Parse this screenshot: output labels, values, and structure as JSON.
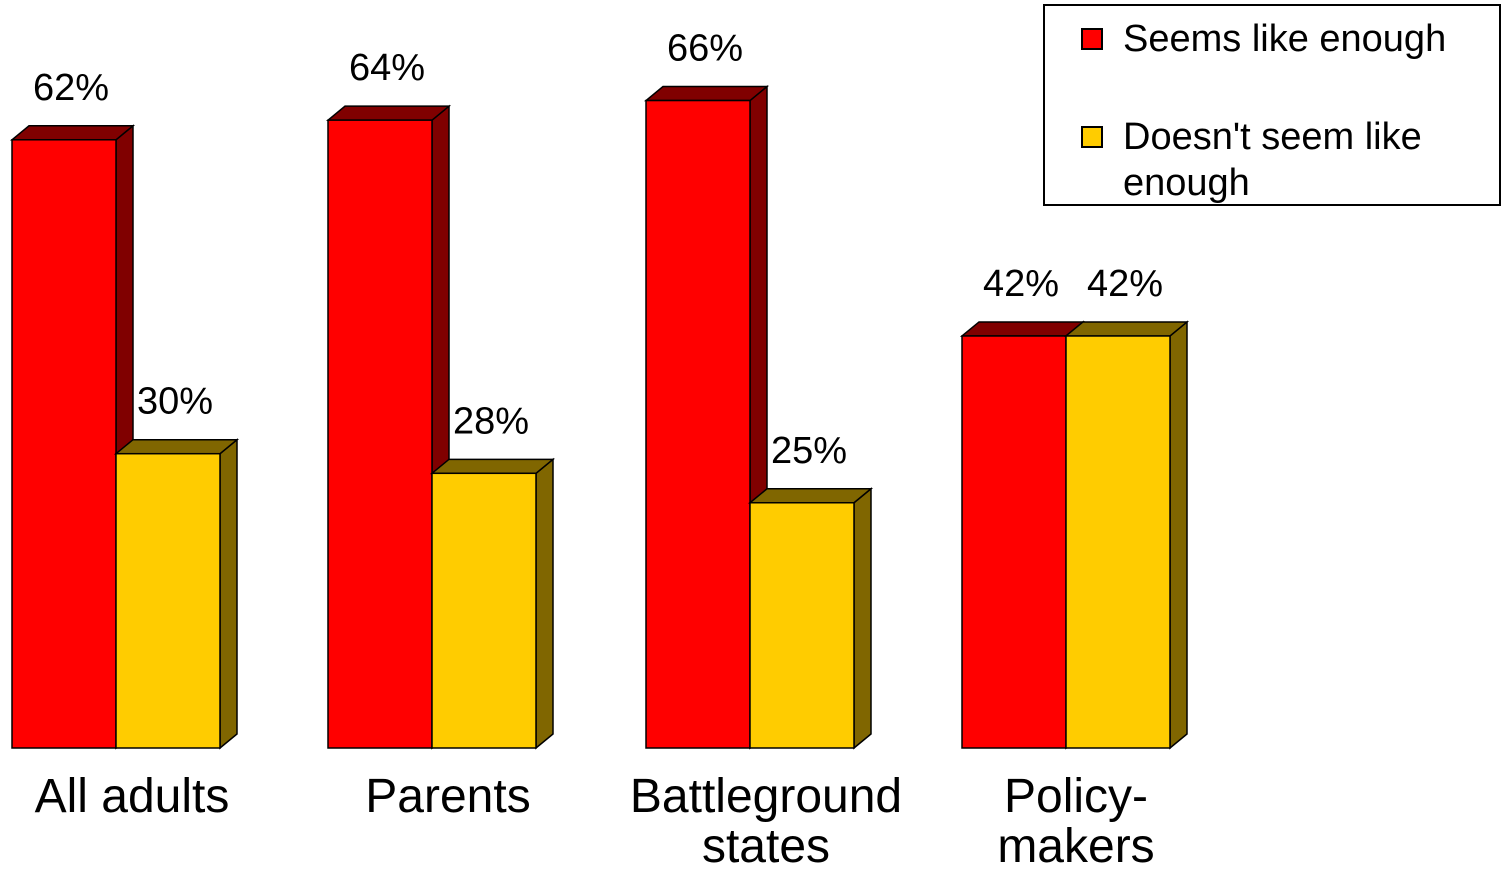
{
  "chart_data": {
    "type": "bar",
    "categories": [
      "All adults",
      "Parents",
      "Battleground states",
      "Policy-makers"
    ],
    "category_lines": [
      [
        "All adults"
      ],
      [
        "Parents"
      ],
      [
        "Battleground",
        "states"
      ],
      [
        "Policy-",
        "makers"
      ]
    ],
    "series": [
      {
        "name": "Seems like enough",
        "values": [
          62,
          64,
          66,
          42
        ],
        "labels": [
          "62%",
          "64%",
          "66%",
          "42%"
        ],
        "color": "#ff0000",
        "side_color": "#800000"
      },
      {
        "name": "Doesn't seem like enough",
        "values": [
          30,
          28,
          25,
          42
        ],
        "labels": [
          "30%",
          "28%",
          "25%",
          "42%"
        ],
        "color": "#ffcc00",
        "side_color": "#806600"
      }
    ],
    "ylim": [
      0,
      70
    ],
    "grid": false,
    "legend_position": "top-right",
    "three_d": true
  },
  "legend": {
    "items": [
      {
        "lines": [
          "Seems like enough"
        ],
        "color": "#ff0000"
      },
      {
        "lines": [
          "Doesn't seem like",
          "enough"
        ],
        "color": "#ffcc00"
      }
    ]
  }
}
